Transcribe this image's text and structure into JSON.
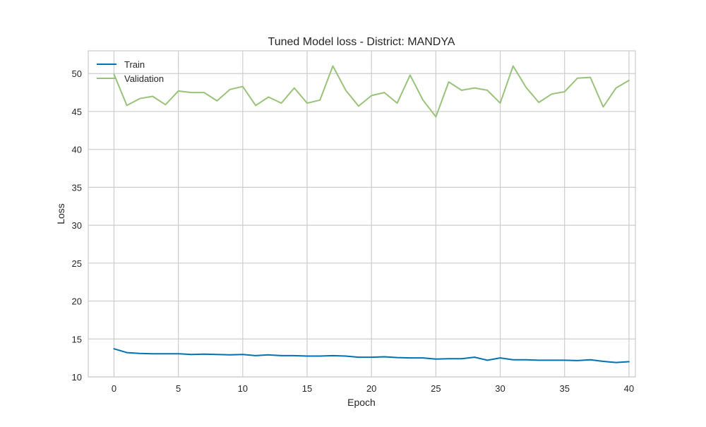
{
  "chart_data": {
    "type": "line",
    "title": "Tuned Model loss - District: MANDYA",
    "xlabel": "Epoch",
    "ylabel": "Loss",
    "xlim": [
      -2,
      40.5
    ],
    "ylim": [
      10,
      53
    ],
    "xticks": [
      0,
      5,
      10,
      15,
      20,
      25,
      30,
      35,
      40
    ],
    "yticks": [
      10,
      15,
      20,
      25,
      30,
      35,
      40,
      45,
      50
    ],
    "grid": true,
    "legend": "top-left",
    "x": [
      0,
      1,
      2,
      3,
      4,
      5,
      6,
      7,
      8,
      9,
      10,
      11,
      12,
      13,
      14,
      15,
      16,
      17,
      18,
      19,
      20,
      21,
      22,
      23,
      24,
      25,
      26,
      27,
      28,
      29,
      30,
      31,
      32,
      33,
      34,
      35,
      36,
      37,
      38,
      39,
      40
    ],
    "series": [
      {
        "name": "Train",
        "color": "#0072b2",
        "values": [
          13.7,
          13.2,
          13.1,
          13.05,
          13.05,
          13.05,
          12.95,
          13.0,
          12.95,
          12.9,
          12.95,
          12.8,
          12.9,
          12.8,
          12.8,
          12.75,
          12.75,
          12.8,
          12.75,
          12.6,
          12.6,
          12.65,
          12.55,
          12.5,
          12.5,
          12.35,
          12.4,
          12.4,
          12.6,
          12.2,
          12.5,
          12.25,
          12.25,
          12.2,
          12.2,
          12.2,
          12.15,
          12.25,
          12.05,
          11.9,
          12.0
        ]
      },
      {
        "name": "Validation",
        "color": "#9ac27a",
        "values": [
          49.9,
          45.8,
          46.7,
          47.0,
          45.9,
          47.7,
          47.5,
          47.5,
          46.4,
          47.9,
          48.3,
          45.8,
          46.9,
          46.1,
          48.1,
          46.1,
          46.5,
          51.0,
          47.8,
          45.7,
          47.1,
          47.5,
          46.1,
          49.8,
          46.5,
          44.3,
          48.9,
          47.8,
          48.1,
          47.8,
          46.1,
          51.0,
          48.2,
          46.2,
          47.3,
          47.6,
          49.4,
          49.5,
          45.6,
          48.1,
          49.1
        ]
      }
    ]
  }
}
